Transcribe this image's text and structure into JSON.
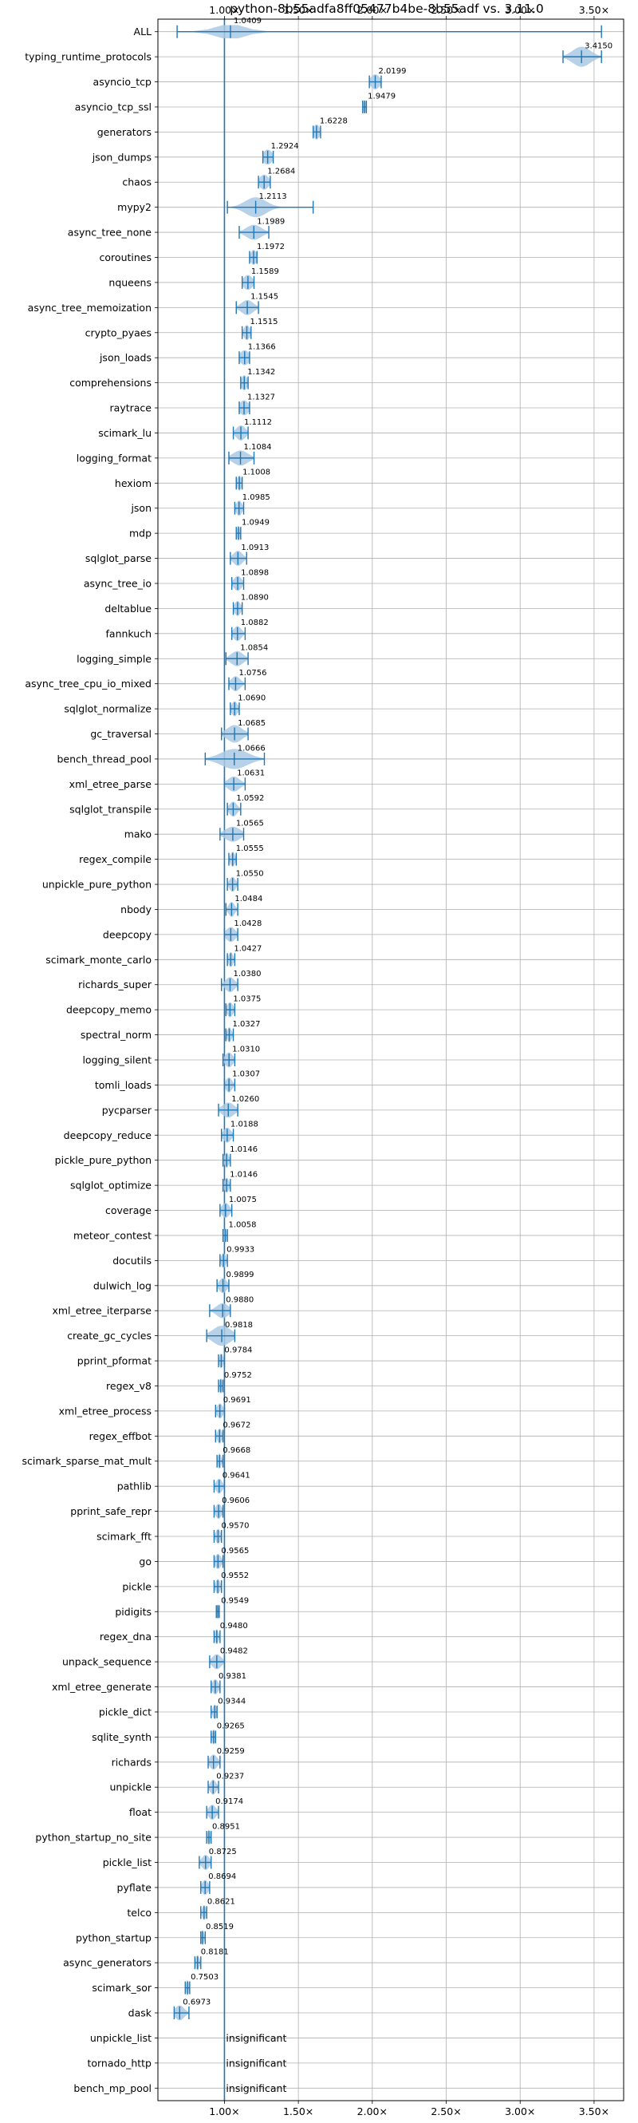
{
  "chart_data": {
    "type": "violin",
    "title": "python-8b55adfa8ff05477b4be-8b55adf vs. 3.11.0",
    "x_axis_position": "top-and-bottom",
    "xlim": [
      0.55,
      3.7
    ],
    "x_ticks": [
      1.0,
      1.5,
      2.0,
      2.5,
      3.0,
      3.5
    ],
    "x_tick_labels": [
      "1.00×",
      "1.50×",
      "2.00×",
      "2.50×",
      "3.00×",
      "3.50×"
    ],
    "reference_line": 1.0,
    "grid": true,
    "colors": {
      "accent": "#1f77b4",
      "violin_fill": "#a9c9e4",
      "grid": "#b0b0b0",
      "text": "#000000"
    },
    "insignificant_label": "insignificant",
    "rows": [
      {
        "name": "ALL",
        "value": 1.0409,
        "label": "1.0409",
        "min": 0.68,
        "max": 3.55,
        "spread": 0.1,
        "width": 0.6
      },
      {
        "name": "typing_runtime_protocols",
        "value": 3.415,
        "label": "3.4150",
        "min": 3.29,
        "max": 3.55,
        "spread": 0.06,
        "width": 0.8
      },
      {
        "name": "asyncio_tcp",
        "value": 2.0199,
        "label": "2.0199",
        "min": 1.98,
        "max": 2.06,
        "spread": 0.03,
        "width": 0.6
      },
      {
        "name": "asyncio_tcp_ssl",
        "value": 1.9479,
        "label": "1.9479",
        "min": 1.935,
        "max": 1.96,
        "spread": 0.01,
        "width": 0.5
      },
      {
        "name": "generators",
        "value": 1.6228,
        "label": "1.6228",
        "min": 1.6,
        "max": 1.65,
        "spread": 0.02,
        "width": 0.6
      },
      {
        "name": "json_dumps",
        "value": 1.2924,
        "label": "1.2924",
        "min": 1.26,
        "max": 1.33,
        "spread": 0.03,
        "width": 0.6
      },
      {
        "name": "chaos",
        "value": 1.2684,
        "label": "1.2684",
        "min": 1.23,
        "max": 1.31,
        "spread": 0.03,
        "width": 0.6
      },
      {
        "name": "mypy2",
        "value": 1.2113,
        "label": "1.2113",
        "min": 1.02,
        "max": 1.6,
        "spread": 0.07,
        "width": 0.8
      },
      {
        "name": "async_tree_none",
        "value": 1.1989,
        "label": "1.1989",
        "min": 1.1,
        "max": 1.3,
        "spread": 0.05,
        "width": 0.6
      },
      {
        "name": "coroutines",
        "value": 1.1972,
        "label": "1.1972",
        "min": 1.17,
        "max": 1.22,
        "spread": 0.02,
        "width": 0.6
      },
      {
        "name": "nqueens",
        "value": 1.1589,
        "label": "1.1589",
        "min": 1.12,
        "max": 1.2,
        "spread": 0.03,
        "width": 0.6
      },
      {
        "name": "async_tree_memoization",
        "value": 1.1545,
        "label": "1.1545",
        "min": 1.08,
        "max": 1.23,
        "spread": 0.04,
        "width": 0.6
      },
      {
        "name": "crypto_pyaes",
        "value": 1.1515,
        "label": "1.1515",
        "min": 1.12,
        "max": 1.18,
        "spread": 0.02,
        "width": 0.6
      },
      {
        "name": "json_loads",
        "value": 1.1366,
        "label": "1.1366",
        "min": 1.1,
        "max": 1.17,
        "spread": 0.03,
        "width": 0.6
      },
      {
        "name": "comprehensions",
        "value": 1.1342,
        "label": "1.1342",
        "min": 1.11,
        "max": 1.16,
        "spread": 0.02,
        "width": 0.6
      },
      {
        "name": "raytrace",
        "value": 1.1327,
        "label": "1.1327",
        "min": 1.1,
        "max": 1.17,
        "spread": 0.03,
        "width": 0.6
      },
      {
        "name": "scimark_lu",
        "value": 1.1112,
        "label": "1.1112",
        "min": 1.06,
        "max": 1.16,
        "spread": 0.03,
        "width": 0.6
      },
      {
        "name": "logging_format",
        "value": 1.1084,
        "label": "1.1084",
        "min": 1.03,
        "max": 1.2,
        "spread": 0.05,
        "width": 0.6
      },
      {
        "name": "hexiom",
        "value": 1.1008,
        "label": "1.1008",
        "min": 1.08,
        "max": 1.12,
        "spread": 0.015,
        "width": 0.6
      },
      {
        "name": "json",
        "value": 1.0985,
        "label": "1.0985",
        "min": 1.07,
        "max": 1.13,
        "spread": 0.02,
        "width": 0.6
      },
      {
        "name": "mdp",
        "value": 1.0949,
        "label": "1.0949",
        "min": 1.08,
        "max": 1.11,
        "spread": 0.01,
        "width": 0.6
      },
      {
        "name": "sqlglot_parse",
        "value": 1.0913,
        "label": "1.0913",
        "min": 1.04,
        "max": 1.15,
        "spread": 0.03,
        "width": 0.6
      },
      {
        "name": "async_tree_io",
        "value": 1.0898,
        "label": "1.0898",
        "min": 1.05,
        "max": 1.13,
        "spread": 0.025,
        "width": 0.6
      },
      {
        "name": "deltablue",
        "value": 1.089,
        "label": "1.0890",
        "min": 1.06,
        "max": 1.12,
        "spread": 0.02,
        "width": 0.6
      },
      {
        "name": "fannkuch",
        "value": 1.0882,
        "label": "1.0882",
        "min": 1.05,
        "max": 1.14,
        "spread": 0.025,
        "width": 0.6
      },
      {
        "name": "logging_simple",
        "value": 1.0854,
        "label": "1.0854",
        "min": 1.01,
        "max": 1.16,
        "spread": 0.04,
        "width": 0.6
      },
      {
        "name": "async_tree_cpu_io_mixed",
        "value": 1.0756,
        "label": "1.0756",
        "min": 1.03,
        "max": 1.14,
        "spread": 0.03,
        "width": 0.6
      },
      {
        "name": "sqlglot_normalize",
        "value": 1.069,
        "label": "1.0690",
        "min": 1.04,
        "max": 1.1,
        "spread": 0.02,
        "width": 0.6
      },
      {
        "name": "gc_traversal",
        "value": 1.0685,
        "label": "1.0685",
        "min": 0.98,
        "max": 1.16,
        "spread": 0.05,
        "width": 0.7
      },
      {
        "name": "bench_thread_pool",
        "value": 1.0666,
        "label": "1.0666",
        "min": 0.87,
        "max": 1.27,
        "spread": 0.09,
        "width": 0.8
      },
      {
        "name": "xml_etree_parse",
        "value": 1.0631,
        "label": "1.0631",
        "min": 1.0,
        "max": 1.14,
        "spread": 0.04,
        "width": 0.6
      },
      {
        "name": "sqlglot_transpile",
        "value": 1.0592,
        "label": "1.0592",
        "min": 1.02,
        "max": 1.11,
        "spread": 0.025,
        "width": 0.6
      },
      {
        "name": "mako",
        "value": 1.0565,
        "label": "1.0565",
        "min": 0.97,
        "max": 1.13,
        "spread": 0.05,
        "width": 0.6
      },
      {
        "name": "regex_compile",
        "value": 1.0555,
        "label": "1.0555",
        "min": 1.03,
        "max": 1.08,
        "spread": 0.015,
        "width": 0.6
      },
      {
        "name": "unpickle_pure_python",
        "value": 1.055,
        "label": "1.0550",
        "min": 1.02,
        "max": 1.09,
        "spread": 0.02,
        "width": 0.6
      },
      {
        "name": "nbody",
        "value": 1.0484,
        "label": "1.0484",
        "min": 1.01,
        "max": 1.09,
        "spread": 0.02,
        "width": 0.6
      },
      {
        "name": "deepcopy",
        "value": 1.0428,
        "label": "1.0428",
        "min": 1.0,
        "max": 1.09,
        "spread": 0.03,
        "width": 0.6
      },
      {
        "name": "scimark_monte_carlo",
        "value": 1.0427,
        "label": "1.0427",
        "min": 1.02,
        "max": 1.07,
        "spread": 0.015,
        "width": 0.6
      },
      {
        "name": "richards_super",
        "value": 1.038,
        "label": "1.0380",
        "min": 0.98,
        "max": 1.09,
        "spread": 0.03,
        "width": 0.6
      },
      {
        "name": "deepcopy_memo",
        "value": 1.0375,
        "label": "1.0375",
        "min": 1.01,
        "max": 1.07,
        "spread": 0.02,
        "width": 0.6
      },
      {
        "name": "spectral_norm",
        "value": 1.0327,
        "label": "1.0327",
        "min": 1.01,
        "max": 1.06,
        "spread": 0.015,
        "width": 0.6
      },
      {
        "name": "logging_silent",
        "value": 1.031,
        "label": "1.0310",
        "min": 0.99,
        "max": 1.07,
        "spread": 0.025,
        "width": 0.6
      },
      {
        "name": "tomli_loads",
        "value": 1.0307,
        "label": "1.0307",
        "min": 1.0,
        "max": 1.07,
        "spread": 0.02,
        "width": 0.6
      },
      {
        "name": "pycparser",
        "value": 1.026,
        "label": "1.0260",
        "min": 0.96,
        "max": 1.09,
        "spread": 0.04,
        "width": 0.6
      },
      {
        "name": "deepcopy_reduce",
        "value": 1.0188,
        "label": "1.0188",
        "min": 0.98,
        "max": 1.06,
        "spread": 0.025,
        "width": 0.6
      },
      {
        "name": "pickle_pure_python",
        "value": 1.0146,
        "label": "1.0146",
        "min": 0.99,
        "max": 1.04,
        "spread": 0.015,
        "width": 0.6
      },
      {
        "name": "sqlglot_optimize",
        "value": 1.0146,
        "label": "1.0146",
        "min": 0.99,
        "max": 1.04,
        "spread": 0.015,
        "width": 0.6
      },
      {
        "name": "coverage",
        "value": 1.0075,
        "label": "1.0075",
        "min": 0.97,
        "max": 1.05,
        "spread": 0.025,
        "width": 0.6
      },
      {
        "name": "meteor_contest",
        "value": 1.0058,
        "label": "1.0058",
        "min": 0.99,
        "max": 1.02,
        "spread": 0.01,
        "width": 0.6
      },
      {
        "name": "docutils",
        "value": 0.9933,
        "label": "0.9933",
        "min": 0.97,
        "max": 1.02,
        "spread": 0.015,
        "width": 0.6
      },
      {
        "name": "dulwich_log",
        "value": 0.9899,
        "label": "0.9899",
        "min": 0.95,
        "max": 1.03,
        "spread": 0.025,
        "width": 0.6
      },
      {
        "name": "xml_etree_iterparse",
        "value": 0.988,
        "label": "0.9880",
        "min": 0.9,
        "max": 1.04,
        "spread": 0.04,
        "width": 0.6
      },
      {
        "name": "create_gc_cycles",
        "value": 0.9818,
        "label": "0.9818",
        "min": 0.88,
        "max": 1.07,
        "spread": 0.06,
        "width": 0.8
      },
      {
        "name": "pprint_pformat",
        "value": 0.9784,
        "label": "0.9784",
        "min": 0.96,
        "max": 1.0,
        "spread": 0.012,
        "width": 0.6
      },
      {
        "name": "regex_v8",
        "value": 0.9752,
        "label": "0.9752",
        "min": 0.96,
        "max": 0.99,
        "spread": 0.01,
        "width": 0.6
      },
      {
        "name": "xml_etree_process",
        "value": 0.9691,
        "label": "0.9691",
        "min": 0.94,
        "max": 1.0,
        "spread": 0.02,
        "width": 0.6
      },
      {
        "name": "regex_effbot",
        "value": 0.9672,
        "label": "0.9672",
        "min": 0.94,
        "max": 0.99,
        "spread": 0.015,
        "width": 0.6
      },
      {
        "name": "scimark_sparse_mat_mult",
        "value": 0.9668,
        "label": "0.9668",
        "min": 0.95,
        "max": 0.99,
        "spread": 0.012,
        "width": 0.6
      },
      {
        "name": "pathlib",
        "value": 0.9641,
        "label": "0.9641",
        "min": 0.93,
        "max": 1.0,
        "spread": 0.02,
        "width": 0.6
      },
      {
        "name": "pprint_safe_repr",
        "value": 0.9606,
        "label": "0.9606",
        "min": 0.93,
        "max": 0.99,
        "spread": 0.02,
        "width": 0.6
      },
      {
        "name": "scimark_fft",
        "value": 0.957,
        "label": "0.9570",
        "min": 0.93,
        "max": 0.98,
        "spread": 0.015,
        "width": 0.6
      },
      {
        "name": "go",
        "value": 0.9565,
        "label": "0.9565",
        "min": 0.93,
        "max": 0.99,
        "spread": 0.02,
        "width": 0.6
      },
      {
        "name": "pickle",
        "value": 0.9552,
        "label": "0.9552",
        "min": 0.93,
        "max": 0.98,
        "spread": 0.015,
        "width": 0.6
      },
      {
        "name": "pidigits",
        "value": 0.9549,
        "label": "0.9549",
        "min": 0.945,
        "max": 0.965,
        "spread": 0.006,
        "width": 0.6
      },
      {
        "name": "regex_dna",
        "value": 0.948,
        "label": "0.9480",
        "min": 0.93,
        "max": 0.97,
        "spread": 0.012,
        "width": 0.6
      },
      {
        "name": "unpack_sequence",
        "value": 0.9482,
        "label": "0.9482",
        "min": 0.9,
        "max": 1.0,
        "spread": 0.03,
        "width": 0.6
      },
      {
        "name": "xml_etree_generate",
        "value": 0.9381,
        "label": "0.9381",
        "min": 0.91,
        "max": 0.97,
        "spread": 0.02,
        "width": 0.6
      },
      {
        "name": "pickle_dict",
        "value": 0.9344,
        "label": "0.9344",
        "min": 0.91,
        "max": 0.95,
        "spread": 0.012,
        "width": 0.6
      },
      {
        "name": "sqlite_synth",
        "value": 0.9265,
        "label": "0.9265",
        "min": 0.91,
        "max": 0.94,
        "spread": 0.01,
        "width": 0.6
      },
      {
        "name": "richards",
        "value": 0.9259,
        "label": "0.9259",
        "min": 0.89,
        "max": 0.97,
        "spread": 0.025,
        "width": 0.6
      },
      {
        "name": "unpickle",
        "value": 0.9237,
        "label": "0.9237",
        "min": 0.89,
        "max": 0.96,
        "spread": 0.02,
        "width": 0.6
      },
      {
        "name": "float",
        "value": 0.9174,
        "label": "0.9174",
        "min": 0.88,
        "max": 0.96,
        "spread": 0.025,
        "width": 0.6
      },
      {
        "name": "python_startup_no_site",
        "value": 0.8951,
        "label": "0.8951",
        "min": 0.88,
        "max": 0.91,
        "spread": 0.01,
        "width": 0.6
      },
      {
        "name": "pickle_list",
        "value": 0.8725,
        "label": "0.8725",
        "min": 0.83,
        "max": 0.91,
        "spread": 0.025,
        "width": 0.6
      },
      {
        "name": "pyflate",
        "value": 0.8694,
        "label": "0.8694",
        "min": 0.84,
        "max": 0.9,
        "spread": 0.02,
        "width": 0.6
      },
      {
        "name": "telco",
        "value": 0.8621,
        "label": "0.8621",
        "min": 0.84,
        "max": 0.88,
        "spread": 0.012,
        "width": 0.6
      },
      {
        "name": "python_startup",
        "value": 0.8519,
        "label": "0.8519",
        "min": 0.84,
        "max": 0.87,
        "spread": 0.01,
        "width": 0.6
      },
      {
        "name": "async_generators",
        "value": 0.8181,
        "label": "0.8181",
        "min": 0.8,
        "max": 0.84,
        "spread": 0.012,
        "width": 0.6
      },
      {
        "name": "scimark_sor",
        "value": 0.7503,
        "label": "0.7503",
        "min": 0.735,
        "max": 0.765,
        "spread": 0.01,
        "width": 0.6
      },
      {
        "name": "dask",
        "value": 0.6973,
        "label": "0.6973",
        "min": 0.66,
        "max": 0.76,
        "spread": 0.03,
        "width": 0.6
      },
      {
        "name": "unpickle_list",
        "value": null,
        "label": "insignificant"
      },
      {
        "name": "tornado_http",
        "value": null,
        "label": "insignificant"
      },
      {
        "name": "bench_mp_pool",
        "value": null,
        "label": "insignificant"
      }
    ]
  }
}
